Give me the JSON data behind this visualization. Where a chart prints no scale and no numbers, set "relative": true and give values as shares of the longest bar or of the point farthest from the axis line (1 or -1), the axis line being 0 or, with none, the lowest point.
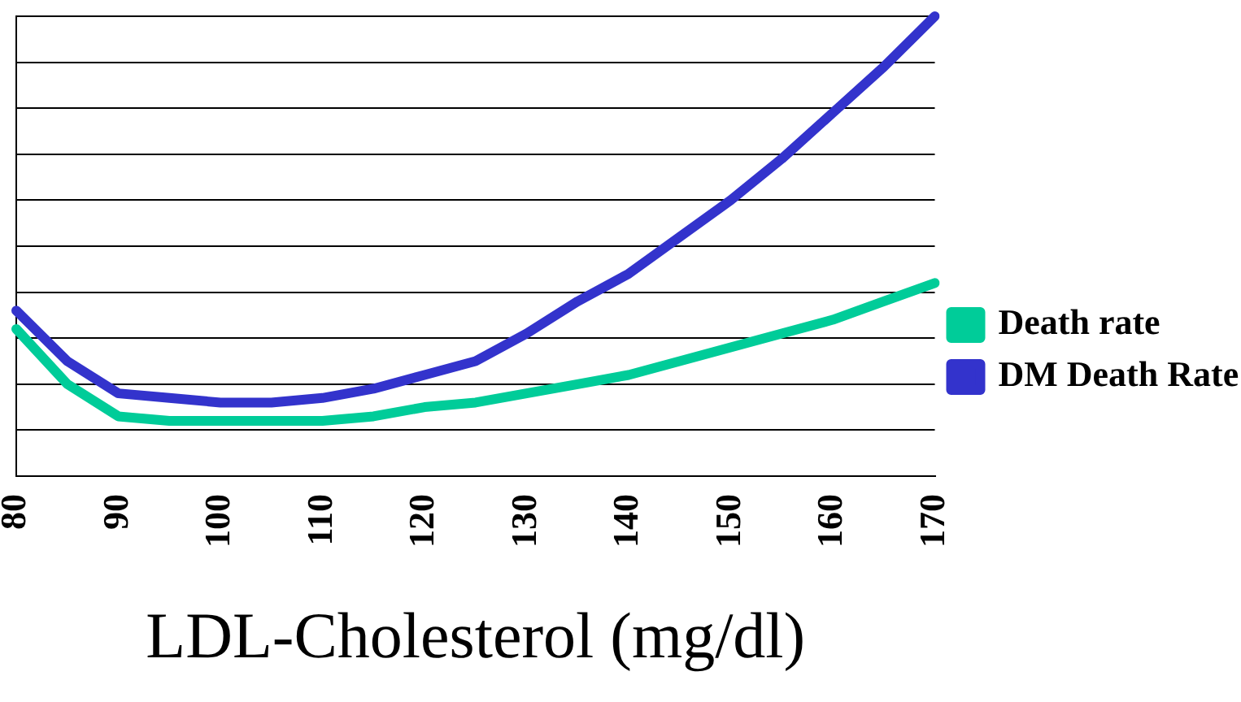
{
  "chart_data": {
    "type": "line",
    "xlabel": "LDL-Cholesterol (mg/dl)",
    "relative": true,
    "grid": "y",
    "legend": "right",
    "marker": "none",
    "line_style": "solid",
    "categories": [
      "80",
      null,
      "90",
      null,
      "100",
      null,
      "110",
      null,
      "120",
      null,
      "130",
      null,
      "140",
      null,
      "150",
      null,
      "160",
      null,
      "170"
    ],
    "series": [
      {
        "name": "Death rate",
        "color": "#00cc99",
        "values": [
          0.32,
          0.2,
          0.13,
          0.12,
          0.12,
          0.12,
          0.12,
          0.13,
          0.15,
          0.16,
          0.18,
          0.2,
          0.22,
          0.25,
          0.28,
          0.31,
          0.34,
          0.38,
          0.42
        ]
      },
      {
        "name": "DM Death Rate",
        "color": "#3333cc",
        "values": [
          0.36,
          0.25,
          0.18,
          0.17,
          0.16,
          0.16,
          0.17,
          0.19,
          0.22,
          0.25,
          0.31,
          0.38,
          0.44,
          0.52,
          0.6,
          0.69,
          0.79,
          0.89,
          1
        ]
      }
    ]
  }
}
